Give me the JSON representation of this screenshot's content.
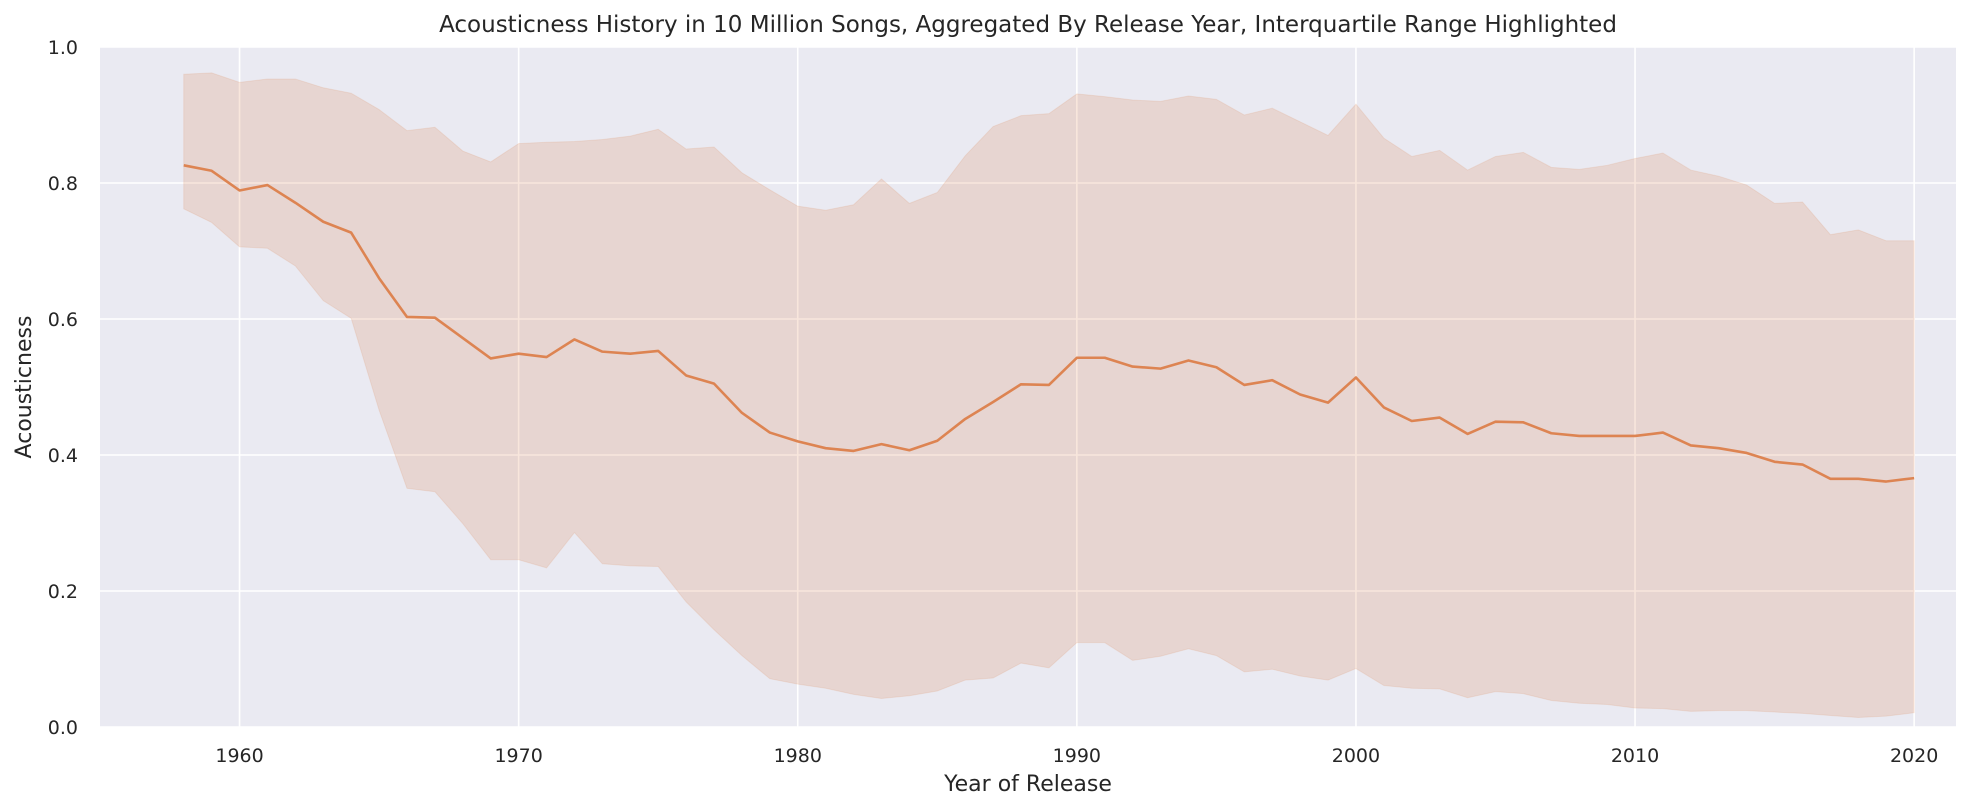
{
  "chart_data": {
    "type": "line",
    "title": "Acousticness History in 10 Million Songs, Aggregated By Release Year, Interquartile Range Highlighted",
    "xlabel": "Year of Release",
    "ylabel": "Acousticness",
    "xlim": [
      1955,
      2021.5
    ],
    "ylim": [
      0.0,
      1.0
    ],
    "xticks": [
      1960,
      1970,
      1980,
      1990,
      2000,
      2010,
      2020
    ],
    "yticks": [
      0.0,
      0.2,
      0.4,
      0.6,
      0.8,
      1.0
    ],
    "ytick_labels": [
      "0.0",
      "0.2",
      "0.4",
      "0.6",
      "0.8",
      "1.0"
    ],
    "grid": true,
    "legend": "none",
    "colors": {
      "background": "#eaeaf2",
      "grid": "#ffffff",
      "line": "#dd8452",
      "band": "#dd8452"
    },
    "x": [
      1958,
      1959,
      1960,
      1961,
      1962,
      1963,
      1964,
      1965,
      1966,
      1967,
      1968,
      1969,
      1970,
      1971,
      1972,
      1973,
      1974,
      1975,
      1976,
      1977,
      1978,
      1979,
      1980,
      1981,
      1982,
      1983,
      1984,
      1985,
      1986,
      1987,
      1988,
      1989,
      1990,
      1991,
      1992,
      1993,
      1994,
      1995,
      1996,
      1997,
      1998,
      1999,
      2000,
      2001,
      2002,
      2003,
      2004,
      2005,
      2006,
      2007,
      2008,
      2009,
      2010,
      2011,
      2012,
      2013,
      2014,
      2015,
      2016,
      2017,
      2018,
      2019,
      2020
    ],
    "series": [
      {
        "values": [
          0.826,
          0.818,
          0.789,
          0.797,
          0.771,
          0.743,
          0.727,
          0.66,
          0.603,
          0.602,
          0.572,
          0.542,
          0.549,
          0.544,
          0.57,
          0.552,
          0.549,
          0.553,
          0.517,
          0.505,
          0.462,
          0.433,
          0.42,
          0.41,
          0.406,
          0.416,
          0.407,
          0.421,
          0.453,
          0.478,
          0.504,
          0.503,
          0.543,
          0.543,
          0.53,
          0.527,
          0.539,
          0.529,
          0.503,
          0.51,
          0.489,
          0.477,
          0.514,
          0.47,
          0.45,
          0.455,
          0.431,
          0.449,
          0.448,
          0.432,
          0.428,
          0.428,
          0.428,
          0.433,
          0.414,
          0.41,
          0.403,
          0.39,
          0.386,
          0.365,
          0.365,
          0.361,
          0.366
        ],
        "q1": [
          0.762,
          0.742,
          0.706,
          0.704,
          0.678,
          0.627,
          0.601,
          0.466,
          0.351,
          0.346,
          0.299,
          0.246,
          0.246,
          0.234,
          0.286,
          0.24,
          0.237,
          0.236,
          0.184,
          0.143,
          0.105,
          0.071,
          0.063,
          0.057,
          0.048,
          0.042,
          0.046,
          0.053,
          0.069,
          0.072,
          0.094,
          0.087,
          0.124,
          0.124,
          0.098,
          0.104,
          0.115,
          0.105,
          0.081,
          0.085,
          0.075,
          0.069,
          0.086,
          0.061,
          0.057,
          0.056,
          0.043,
          0.052,
          0.049,
          0.039,
          0.035,
          0.033,
          0.028,
          0.027,
          0.023,
          0.024,
          0.024,
          0.022,
          0.02,
          0.017,
          0.014,
          0.016,
          0.021
        ],
        "q3": [
          0.96,
          0.962,
          0.948,
          0.953,
          0.953,
          0.94,
          0.932,
          0.908,
          0.877,
          0.882,
          0.847,
          0.831,
          0.858,
          0.86,
          0.861,
          0.864,
          0.869,
          0.879,
          0.85,
          0.853,
          0.815,
          0.79,
          0.766,
          0.76,
          0.768,
          0.806,
          0.77,
          0.786,
          0.84,
          0.883,
          0.899,
          0.902,
          0.931,
          0.927,
          0.922,
          0.92,
          0.928,
          0.923,
          0.9,
          0.91,
          0.89,
          0.87,
          0.916,
          0.866,
          0.839,
          0.848,
          0.819,
          0.839,
          0.845,
          0.823,
          0.82,
          0.826,
          0.836,
          0.844,
          0.819,
          0.81,
          0.797,
          0.77,
          0.772,
          0.724,
          0.731,
          0.715,
          0.715
        ]
      }
    ]
  }
}
